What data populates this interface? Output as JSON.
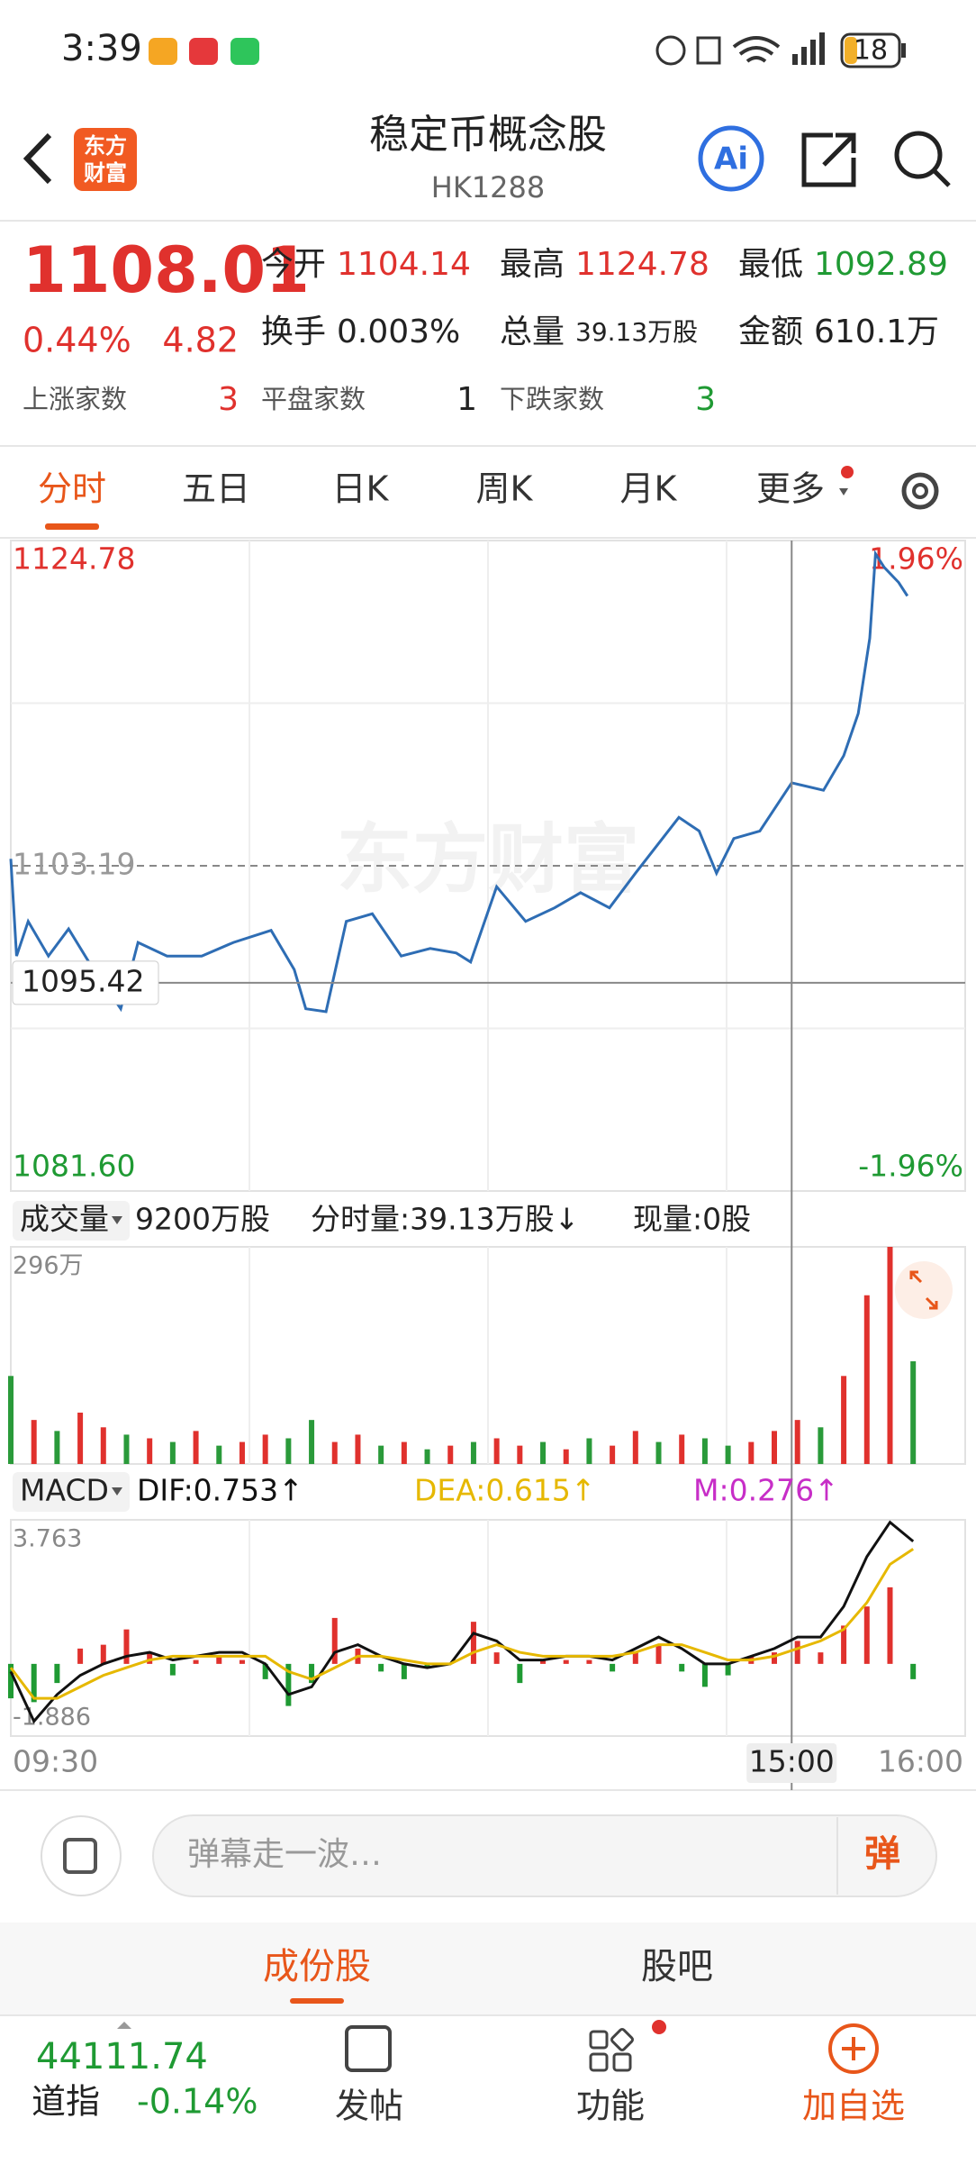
{
  "status_bar": {
    "time": "3:39",
    "battery": "18"
  },
  "header": {
    "logo": [
      "东方",
      "财富"
    ],
    "title": "稳定币概念股",
    "code": "HK1288"
  },
  "quote": {
    "price": "1108.01",
    "change_pct": "0.44%",
    "change": "4.82",
    "fields": [
      {
        "label": "今开",
        "value": "1104.14",
        "color": "#e0312d"
      },
      {
        "label": "最高",
        "value": "1124.78",
        "color": "#e0312d"
      },
      {
        "label": "最低",
        "value": "1092.89",
        "color": "#1f9a33"
      },
      {
        "label": "换手",
        "value": "0.003%",
        "color": "#222222"
      },
      {
        "label": "总量",
        "value": "39.13万股",
        "color": "#222222"
      },
      {
        "label": "金额",
        "value": "610.1万",
        "color": "#222222"
      }
    ],
    "breadth": [
      {
        "label": "上涨家数",
        "value": "3",
        "color": "#e0312d"
      },
      {
        "label": "平盘家数",
        "value": "1",
        "color": "#222222"
      },
      {
        "label": "下跌家数",
        "value": "3",
        "color": "#1f9a33"
      }
    ]
  },
  "tabs": [
    "分时",
    "五日",
    "日K",
    "周K",
    "月K",
    "更多"
  ],
  "chart_data": [
    {
      "type": "line",
      "watermark": "东方财富",
      "x": [
        0,
        2,
        6,
        13,
        20,
        27,
        38,
        44,
        54,
        66,
        77,
        90,
        98,
        102,
        109,
        116,
        125,
        135,
        145,
        154,
        159,
        168,
        178,
        188,
        197,
        207,
        216,
        231,
        238,
        244,
        250,
        259,
        270,
        281,
        288,
        293,
        297,
        299,
        302,
        307,
        310
      ],
      "series": [
        {
          "color": "#2e6db4",
          "values": [
            1103.65,
            1097.2,
            1099.5,
            1097.2,
            1099.0,
            1096.8,
            1093.7,
            1098.1,
            1097.2,
            1097.2,
            1098.1,
            1098.9,
            1096.3,
            1093.7,
            1093.5,
            1099.5,
            1100.0,
            1097.2,
            1097.7,
            1097.4,
            1096.8,
            1101.8,
            1099.5,
            1100.4,
            1101.4,
            1100.4,
            1102.7,
            1106.4,
            1105.5,
            1102.7,
            1105.0,
            1105.5,
            1108.7,
            1108.2,
            1110.5,
            1113.3,
            1118.3,
            1123.9,
            1123.0,
            1122.0,
            1121.1
          ]
        }
      ],
      "xlim": [
        0,
        330
      ],
      "ylim": [
        1081.6,
        1124.78
      ],
      "yticks": [
        1124.78,
        {
          "value": 1081.6,
          "label": "1081.60"
        }
      ],
      "y2lim": [
        -1.96,
        1.96
      ],
      "y2ticks": [
        {
          "value": 1.96,
          "label": "1.96%"
        },
        {
          "value": -1.96,
          "label": "-1.96%"
        }
      ],
      "prev_close": 1103.19,
      "crosshair": {
        "x": 270,
        "y": 1095.42
      }
    },
    {
      "type": "bar",
      "indicator": "成交量",
      "info": [
        "9200万股",
        "分时量:39.13万股↓",
        "现量:0股"
      ],
      "x": [
        0,
        8,
        16,
        24,
        32,
        40,
        48,
        56,
        64,
        72,
        80,
        88,
        96,
        104,
        112,
        120,
        128,
        136,
        144,
        152,
        160,
        168,
        176,
        184,
        192,
        200,
        208,
        216,
        224,
        232,
        240,
        248,
        256,
        264,
        272,
        280,
        288,
        296,
        304,
        312
      ],
      "values": [
        120,
        60,
        45,
        70,
        50,
        40,
        35,
        30,
        45,
        25,
        30,
        40,
        35,
        60,
        30,
        40,
        25,
        30,
        20,
        25,
        30,
        35,
        25,
        30,
        20,
        35,
        25,
        45,
        30,
        40,
        35,
        25,
        30,
        45,
        60,
        50,
        120,
        230,
        296,
        140
      ],
      "colors": [
        "#2a9a3a",
        "#e0312d",
        "#2a9a3a",
        "#e0312d",
        "#e0312d",
        "#2a9a3a",
        "#e0312d",
        "#2a9a3a",
        "#e0312d",
        "#2a9a3a",
        "#e0312d",
        "#e0312d",
        "#2a9a3a",
        "#2a9a3a",
        "#e0312d",
        "#e0312d",
        "#2a9a3a",
        "#e0312d",
        "#2a9a3a",
        "#e0312d",
        "#2a9a3a",
        "#e0312d",
        "#e0312d",
        "#2a9a3a",
        "#e0312d",
        "#2a9a3a",
        "#e0312d",
        "#e0312d",
        "#2a9a3a",
        "#e0312d",
        "#2a9a3a",
        "#2a9a3a",
        "#e0312d",
        "#e0312d",
        "#e0312d",
        "#2a9a3a",
        "#e0312d",
        "#e0312d",
        "#e0312d",
        "#2a9a3a"
      ],
      "xlim": [
        0,
        330
      ],
      "ylim": [
        0,
        296
      ],
      "yticks": [
        {
          "value": 296,
          "label": "296万"
        }
      ]
    },
    {
      "type": "macd",
      "indicator": "MACD",
      "x": [
        0,
        8,
        16,
        24,
        32,
        40,
        48,
        56,
        64,
        72,
        80,
        88,
        96,
        104,
        112,
        120,
        128,
        136,
        144,
        152,
        160,
        168,
        176,
        184,
        192,
        200,
        208,
        216,
        224,
        232,
        240,
        248,
        256,
        264,
        272,
        280,
        288,
        296,
        304,
        312
      ],
      "series": [
        {
          "name": "DIF:0.753↑",
          "color": "#111111",
          "style": "line",
          "values": [
            -0.2,
            -1.5,
            -0.8,
            -0.3,
            0.0,
            0.2,
            0.3,
            0.1,
            0.2,
            0.3,
            0.3,
            0.0,
            -0.8,
            -0.6,
            0.3,
            0.5,
            0.2,
            0.0,
            -0.1,
            0.0,
            0.8,
            0.6,
            0.1,
            0.1,
            0.2,
            0.2,
            0.1,
            0.4,
            0.7,
            0.4,
            0.0,
            0.0,
            0.2,
            0.4,
            0.7,
            0.7,
            1.5,
            2.8,
            3.7,
            3.2
          ]
        },
        {
          "name": "DEA:0.615↑",
          "color": "#e6b800",
          "style": "line",
          "values": [
            -0.1,
            -0.9,
            -0.9,
            -0.6,
            -0.3,
            -0.1,
            0.1,
            0.2,
            0.2,
            0.2,
            0.2,
            0.2,
            -0.2,
            -0.4,
            -0.1,
            0.2,
            0.2,
            0.1,
            0.0,
            0.0,
            0.3,
            0.5,
            0.3,
            0.2,
            0.2,
            0.2,
            0.2,
            0.3,
            0.5,
            0.5,
            0.3,
            0.1,
            0.1,
            0.2,
            0.4,
            0.6,
            0.9,
            1.6,
            2.6,
            3.0
          ]
        },
        {
          "name": "M:0.276↑",
          "color": "#c72ec7",
          "style": "bar",
          "values": [
            -0.9,
            -1.0,
            -0.5,
            0.4,
            0.5,
            0.9,
            0.3,
            -0.3,
            0.1,
            0.2,
            0.1,
            -0.4,
            -1.1,
            -0.5,
            1.2,
            0.4,
            -0.2,
            -0.4,
            -0.1,
            0.0,
            1.1,
            0.3,
            -0.5,
            0.1,
            0.1,
            0.1,
            -0.2,
            0.3,
            0.5,
            -0.2,
            -0.6,
            -0.3,
            0.2,
            0.3,
            0.6,
            0.3,
            1.0,
            1.5,
            2.0,
            -0.4
          ]
        }
      ],
      "up_color": "#e0312d",
      "down_color": "#1f9a33",
      "xlim": [
        0,
        330
      ],
      "ylim": [
        -1.886,
        3.763
      ],
      "yticks": [
        3.763,
        -1.886
      ],
      "xticks": [
        {
          "value": 0,
          "label": "09:30"
        },
        {
          "value": 270,
          "label": "15:00"
        },
        {
          "value": 330,
          "label": "16:00"
        }
      ]
    }
  ],
  "comment": {
    "placeholder": "弹幕走一波…",
    "button": "弹"
  },
  "sub_tabs": [
    "成份股",
    "股吧"
  ],
  "bottom_bar": {
    "index_value": "44111.74",
    "index_name": "道指",
    "index_change": "-0.14%",
    "actions": [
      "发帖",
      "功能",
      "加自选"
    ]
  }
}
